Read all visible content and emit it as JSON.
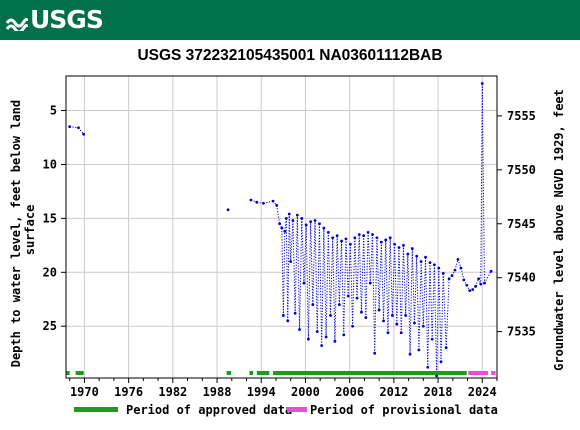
{
  "header": {
    "logo_text": "USGS",
    "banner_color": "#00704a"
  },
  "chart_data": {
    "type": "scatter",
    "title": "USGS 372232105435001 NA03601112BAB",
    "ylabel_left": "Depth to water level, feet below land surface",
    "ylabel_right": "Groundwater level above NGVD 1929, feet",
    "xlabel": "",
    "x_ticks": [
      "1970",
      "1976",
      "1982",
      "1988",
      "1994",
      "2000",
      "2006",
      "2012",
      "2018",
      "2024"
    ],
    "y_ticks_left": [
      "5",
      "10",
      "15",
      "20",
      "25"
    ],
    "y_ticks_right": [
      "7555",
      "7550",
      "7545",
      "7540",
      "7535"
    ],
    "xlim": [
      1967.5,
      2026.0
    ],
    "ylim_left": [
      29.8,
      1.8
    ],
    "right_axis_offset": 7560.5,
    "grid": true,
    "series": [
      {
        "color": "#0000cc",
        "marker": "dot",
        "line": "dotted",
        "points": [
          [
            1968.0,
            6.5
          ],
          [
            1969.2,
            6.6
          ],
          [
            1969.9,
            7.2
          ],
          [
            1989.5,
            14.2
          ],
          [
            1992.6,
            13.3
          ],
          [
            1993.4,
            13.5
          ],
          [
            1994.3,
            13.6
          ],
          [
            1995.6,
            13.4
          ],
          [
            1996.1,
            13.8
          ],
          [
            1996.5,
            15.5
          ],
          [
            1996.8,
            15.9
          ],
          [
            1997.0,
            24.0
          ],
          [
            1997.2,
            16.2
          ],
          [
            1997.4,
            15.0
          ],
          [
            1997.6,
            24.5
          ],
          [
            1997.8,
            14.6
          ],
          [
            1998.0,
            19.0
          ],
          [
            1998.3,
            15.2
          ],
          [
            1998.6,
            23.8
          ],
          [
            1998.9,
            14.7
          ],
          [
            1999.2,
            25.3
          ],
          [
            1999.5,
            15.0
          ],
          [
            1999.8,
            21.0
          ],
          [
            2000.1,
            15.6
          ],
          [
            2000.4,
            26.2
          ],
          [
            2000.7,
            15.3
          ],
          [
            2001.0,
            23.0
          ],
          [
            2001.3,
            15.2
          ],
          [
            2001.6,
            25.5
          ],
          [
            2001.9,
            15.5
          ],
          [
            2002.2,
            26.8
          ],
          [
            2002.5,
            15.9
          ],
          [
            2002.8,
            26.0
          ],
          [
            2003.1,
            16.3
          ],
          [
            2003.4,
            24.0
          ],
          [
            2003.7,
            16.8
          ],
          [
            2004.0,
            26.4
          ],
          [
            2004.3,
            16.6
          ],
          [
            2004.6,
            23.0
          ],
          [
            2004.9,
            17.1
          ],
          [
            2005.2,
            25.8
          ],
          [
            2005.5,
            16.9
          ],
          [
            2005.8,
            22.2
          ],
          [
            2006.1,
            17.4
          ],
          [
            2006.4,
            25.0
          ],
          [
            2006.7,
            16.8
          ],
          [
            2007.0,
            22.4
          ],
          [
            2007.3,
            16.5
          ],
          [
            2007.6,
            23.7
          ],
          [
            2007.9,
            16.6
          ],
          [
            2008.2,
            24.2
          ],
          [
            2008.5,
            16.3
          ],
          [
            2008.8,
            21.0
          ],
          [
            2009.1,
            16.5
          ],
          [
            2009.4,
            27.5
          ],
          [
            2009.7,
            16.8
          ],
          [
            2010.0,
            23.5
          ],
          [
            2010.3,
            17.2
          ],
          [
            2010.6,
            24.5
          ],
          [
            2010.9,
            17.0
          ],
          [
            2011.2,
            25.6
          ],
          [
            2011.5,
            16.8
          ],
          [
            2011.8,
            24.0
          ],
          [
            2012.1,
            17.4
          ],
          [
            2012.4,
            24.8
          ],
          [
            2012.7,
            17.7
          ],
          [
            2013.0,
            25.6
          ],
          [
            2013.3,
            17.5
          ],
          [
            2013.6,
            24.0
          ],
          [
            2013.9,
            18.3
          ],
          [
            2014.2,
            27.6
          ],
          [
            2014.5,
            17.8
          ],
          [
            2014.8,
            24.7
          ],
          [
            2015.1,
            18.5
          ],
          [
            2015.4,
            27.2
          ],
          [
            2015.7,
            19.0
          ],
          [
            2016.0,
            25.0
          ],
          [
            2016.3,
            18.6
          ],
          [
            2016.6,
            28.8
          ],
          [
            2016.9,
            19.1
          ],
          [
            2017.2,
            26.2
          ],
          [
            2017.5,
            19.3
          ],
          [
            2017.8,
            29.6
          ],
          [
            2018.1,
            19.6
          ],
          [
            2018.4,
            28.3
          ],
          [
            2018.7,
            20.1
          ],
          [
            2019.1,
            27.0
          ],
          [
            2019.5,
            20.6
          ],
          [
            2019.9,
            20.3
          ],
          [
            2020.3,
            19.8
          ],
          [
            2020.7,
            18.8
          ],
          [
            2021.1,
            19.6
          ],
          [
            2021.5,
            20.7
          ],
          [
            2021.9,
            21.2
          ],
          [
            2022.3,
            21.7
          ],
          [
            2022.7,
            21.6
          ],
          [
            2023.1,
            21.3
          ],
          [
            2023.5,
            20.6
          ],
          [
            2023.8,
            21.1
          ],
          [
            2024.0,
            2.5
          ],
          [
            2024.3,
            21.0
          ],
          [
            2025.2,
            19.9
          ]
        ]
      }
    ],
    "legend": [
      {
        "label": "Period of approved data",
        "color": "#1f9a1f"
      },
      {
        "label": "Period of provisional data",
        "color": "#e84fd6"
      }
    ],
    "approved_periods": [
      [
        1967.5,
        1968.0
      ],
      [
        1968.8,
        1969.9
      ],
      [
        1989.3,
        1989.9
      ],
      [
        1992.4,
        1992.9
      ],
      [
        1993.4,
        1995.1
      ],
      [
        1995.6,
        2021.9
      ]
    ],
    "provisional_periods": [
      [
        2022.1,
        2024.8
      ],
      [
        2025.2,
        2025.8
      ]
    ]
  }
}
